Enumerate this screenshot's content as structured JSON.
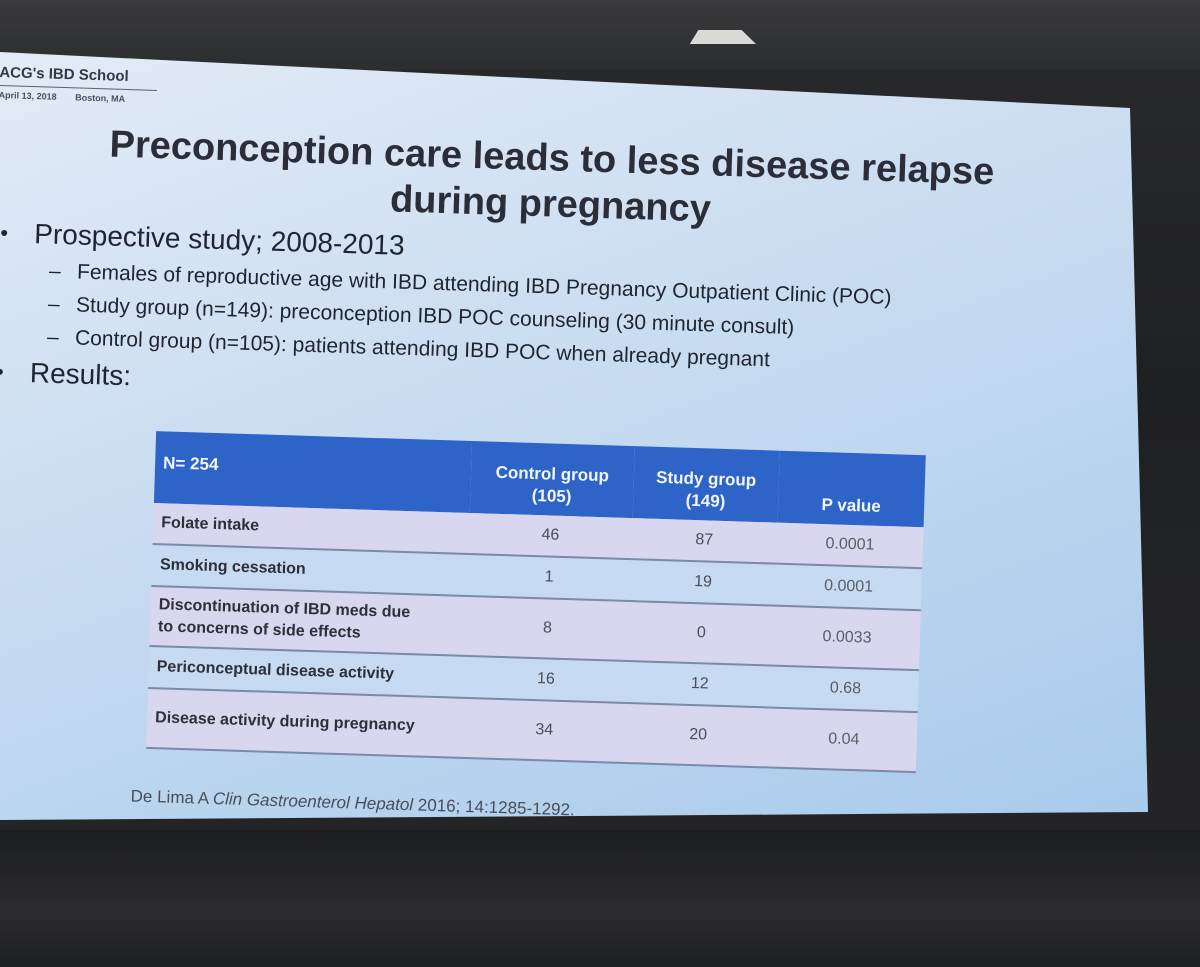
{
  "slide": {
    "school": "ACG's IBD School",
    "date": "April 13, 2018",
    "location": "Boston, MA",
    "title": "Preconception care leads to less disease relapse during pregnancy",
    "bullets": [
      {
        "text": "Prospective study; 2008-2013",
        "sub": [
          "Females of reproductive age with IBD attending IBD Pregnancy Outpatient Clinic (POC)",
          "Study group (n=149):  preconception IBD POC counseling (30 minute consult)",
          "Control group (n=105):  patients attending IBD POC when already pregnant"
        ]
      },
      {
        "text": "Results:"
      }
    ],
    "table": {
      "headers": {
        "n": "N= 254",
        "control": "Control group",
        "control_n": "(105)",
        "study": "Study group",
        "study_n": "(149)",
        "p": "P value"
      },
      "rows": [
        {
          "label": "Folate intake",
          "control": "46",
          "study": "87",
          "p": "0.0001"
        },
        {
          "label": "Smoking cessation",
          "control": "1",
          "study": "19",
          "p": "0.0001"
        },
        {
          "label": "Discontinuation of IBD meds due",
          "label2": "to concerns of side effects",
          "control": "8",
          "study": "0",
          "p": "0.0033"
        },
        {
          "label": "Periconceptual disease activity",
          "control": "16",
          "study": "12",
          "p": "0.68"
        },
        {
          "label": "Disease activity during pregnancy",
          "control": "34",
          "study": "20",
          "p": "0.04"
        }
      ]
    },
    "citation": {
      "author": "De Lima A",
      "journal": "Clin Gastroenterol Hepatol",
      "ref": "2016; 14:1285-1292."
    }
  }
}
